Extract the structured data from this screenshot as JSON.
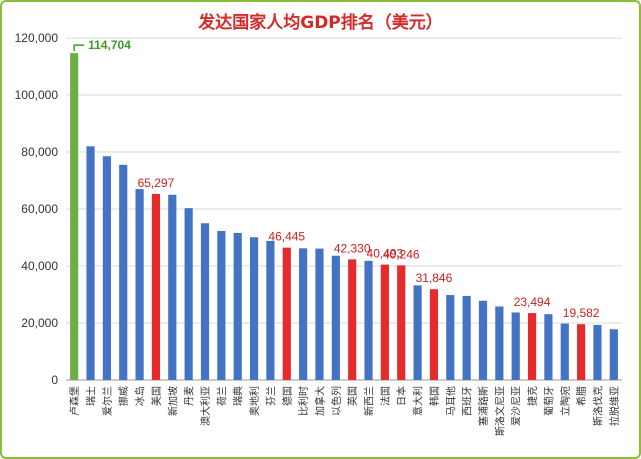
{
  "chart_data": {
    "type": "bar",
    "title": "发达国家人均GDP排名（美元）",
    "xlabel": "",
    "ylabel": "",
    "ylim": [
      0,
      120000
    ],
    "yticks": [
      0,
      20000,
      40000,
      60000,
      80000,
      100000,
      120000
    ],
    "ytick_labels": [
      "0",
      "20,000",
      "40,000",
      "60,000",
      "80,000",
      "100,000",
      "120,000"
    ],
    "grid": "horizontal",
    "legend": "none",
    "categories": [
      "卢森堡",
      "瑞士",
      "爱尔兰",
      "挪威",
      "冰岛",
      "美国",
      "新加坡",
      "丹麦",
      "澳大利亚",
      "荷兰",
      "瑞典",
      "奥地利",
      "芬兰",
      "德国",
      "比利时",
      "加拿大",
      "以色列",
      "英国",
      "新西兰",
      "法国",
      "日本",
      "意大利",
      "韩国",
      "马耳他",
      "西班牙",
      "塞浦路斯",
      "斯洛文尼亚",
      "爱沙尼亚",
      "捷克",
      "葡萄牙",
      "立陶宛",
      "希腊",
      "斯洛伐克",
      "拉脱维亚"
    ],
    "values": [
      114704,
      82000,
      78500,
      75500,
      67000,
      65297,
      65000,
      60300,
      55000,
      52300,
      51600,
      50100,
      48800,
      46445,
      46200,
      46100,
      43600,
      42330,
      41800,
      40493,
      40246,
      33200,
      31846,
      29800,
      29500,
      27800,
      25800,
      23700,
      23494,
      23100,
      19800,
      19582,
      19300,
      17800
    ],
    "bar_colors": [
      "#70ad47",
      "#4472c4",
      "#4472c4",
      "#4472c4",
      "#4472c4",
      "#e52b2b",
      "#4472c4",
      "#4472c4",
      "#4472c4",
      "#4472c4",
      "#4472c4",
      "#4472c4",
      "#4472c4",
      "#e52b2b",
      "#4472c4",
      "#4472c4",
      "#4472c4",
      "#e52b2b",
      "#4472c4",
      "#e52b2b",
      "#e52b2b",
      "#4472c4",
      "#e52b2b",
      "#4472c4",
      "#4472c4",
      "#4472c4",
      "#4472c4",
      "#4472c4",
      "#e52b2b",
      "#4472c4",
      "#4472c4",
      "#e52b2b",
      "#4472c4",
      "#4472c4"
    ],
    "data_labels": [
      {
        "index": 0,
        "text": "114,704",
        "color": "#3c9a2a"
      },
      {
        "index": 5,
        "text": "65,297",
        "color": "#c9201e"
      },
      {
        "index": 13,
        "text": "46,445",
        "color": "#c9201e"
      },
      {
        "index": 17,
        "text": "42,330",
        "color": "#c9201e"
      },
      {
        "index": 19,
        "text": "40,493",
        "color": "#c9201e"
      },
      {
        "index": 20,
        "text": "40,246",
        "color": "#c9201e"
      },
      {
        "index": 22,
        "text": "31,846",
        "color": "#c9201e"
      },
      {
        "index": 28,
        "text": "23,494",
        "color": "#c9201e"
      },
      {
        "index": 31,
        "text": "19,582",
        "color": "#c9201e"
      }
    ]
  }
}
